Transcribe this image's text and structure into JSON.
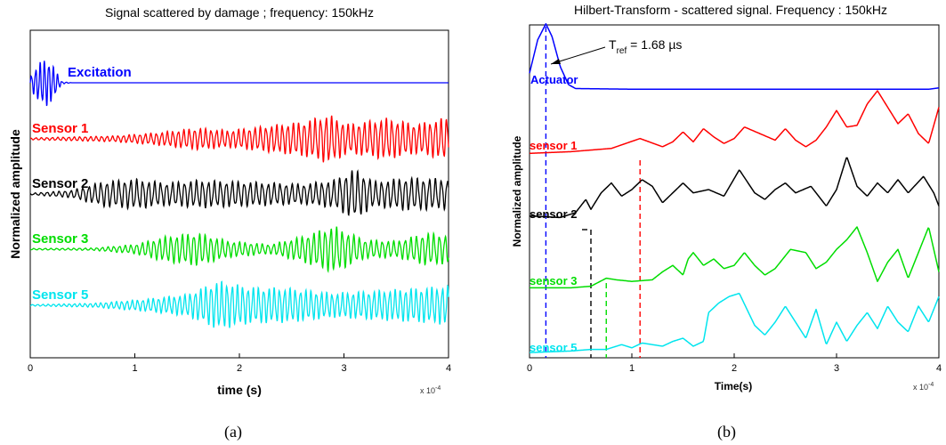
{
  "chart_data": [
    {
      "panel": "(a)",
      "type": "line",
      "title": "Signal scattered by damage ; frequency: 150kHz",
      "xlabel": "time (s)",
      "ylabel": "Normalized amplitude",
      "x_exponent_label": "x 10",
      "x_exponent_power": "-4",
      "xlim": [
        0,
        4
      ],
      "xticks": [
        "0",
        "1",
        "2",
        "3",
        "4"
      ],
      "grid": false,
      "series": [
        {
          "name": "Excitation",
          "color": "#0000ff",
          "envelope": [
            [
              0.0,
              0.25
            ],
            [
              0.08,
              0.8
            ],
            [
              0.15,
              1.0
            ],
            [
              0.22,
              0.7
            ],
            [
              0.3,
              0.05
            ],
            [
              0.4,
              0.0
            ],
            [
              4.0,
              0.0
            ]
          ]
        },
        {
          "name": "Sensor 1",
          "color": "#ff0000",
          "envelope": [
            [
              0.0,
              0.04
            ],
            [
              0.8,
              0.12
            ],
            [
              1.2,
              0.25
            ],
            [
              1.6,
              0.45
            ],
            [
              1.9,
              0.35
            ],
            [
              2.2,
              0.5
            ],
            [
              2.6,
              0.7
            ],
            [
              2.85,
              1.0
            ],
            [
              3.05,
              0.6
            ],
            [
              3.4,
              0.85
            ],
            [
              3.7,
              0.6
            ],
            [
              4.0,
              0.9
            ]
          ]
        },
        {
          "name": "Sensor 2",
          "color": "#000000",
          "envelope": [
            [
              0.0,
              0.03
            ],
            [
              0.4,
              0.15
            ],
            [
              0.7,
              0.5
            ],
            [
              1.0,
              0.6
            ],
            [
              1.3,
              0.45
            ],
            [
              1.6,
              0.55
            ],
            [
              2.0,
              0.5
            ],
            [
              2.3,
              0.45
            ],
            [
              2.6,
              0.4
            ],
            [
              2.9,
              0.55
            ],
            [
              3.1,
              1.0
            ],
            [
              3.3,
              0.5
            ],
            [
              3.6,
              0.65
            ],
            [
              4.0,
              0.6
            ]
          ]
        },
        {
          "name": "Sensor 3",
          "color": "#00dd00",
          "envelope": [
            [
              0.0,
              0.03
            ],
            [
              0.6,
              0.05
            ],
            [
              1.0,
              0.2
            ],
            [
              1.3,
              0.55
            ],
            [
              1.6,
              0.7
            ],
            [
              1.9,
              0.35
            ],
            [
              2.3,
              0.2
            ],
            [
              2.6,
              0.55
            ],
            [
              2.9,
              1.0
            ],
            [
              3.2,
              0.4
            ],
            [
              3.5,
              0.35
            ],
            [
              3.8,
              0.7
            ],
            [
              4.0,
              0.6
            ]
          ]
        },
        {
          "name": "Sensor 5",
          "color": "#00e5ee",
          "envelope": [
            [
              0.0,
              0.03
            ],
            [
              0.6,
              0.08
            ],
            [
              1.1,
              0.25
            ],
            [
              1.5,
              0.45
            ],
            [
              1.8,
              1.0
            ],
            [
              2.1,
              0.75
            ],
            [
              2.5,
              0.7
            ],
            [
              2.9,
              0.5
            ],
            [
              3.3,
              0.6
            ],
            [
              3.7,
              0.7
            ],
            [
              4.0,
              0.8
            ]
          ]
        }
      ]
    },
    {
      "panel": "(b)",
      "type": "line",
      "title": "Hilbert-Transform - scattered signal. Frequency : 150kHz",
      "xlabel": "Time(s)",
      "ylabel": "Normalized amplitude",
      "x_exponent_label": "x 10",
      "x_exponent_power": "-4",
      "xlim": [
        0,
        4
      ],
      "xticks": [
        "0",
        "1",
        "2",
        "3",
        "4"
      ],
      "grid": false,
      "annotation": {
        "text_prefix": "T",
        "text_sub": "ref",
        "text_suffix": " = 1.68 µs"
      },
      "series": [
        {
          "name": "Actuator",
          "color": "#0000ff",
          "points": [
            [
              0.0,
              0.25
            ],
            [
              0.08,
              0.75
            ],
            [
              0.16,
              0.99
            ],
            [
              0.22,
              0.8
            ],
            [
              0.3,
              0.35
            ],
            [
              0.38,
              0.08
            ],
            [
              0.45,
              0.02
            ],
            [
              1.0,
              0.01
            ],
            [
              2.0,
              0.01
            ],
            [
              3.0,
              0.01
            ],
            [
              3.9,
              0.01
            ],
            [
              4.0,
              0.03
            ]
          ]
        },
        {
          "name": "sensor 1",
          "color": "#ff0000",
          "points": [
            [
              0.0,
              0.1
            ],
            [
              0.4,
              0.15
            ],
            [
              0.8,
              0.25
            ],
            [
              1.08,
              0.55
            ],
            [
              1.3,
              0.3
            ],
            [
              1.4,
              0.45
            ],
            [
              1.5,
              0.75
            ],
            [
              1.6,
              0.45
            ],
            [
              1.7,
              0.85
            ],
            [
              1.8,
              0.6
            ],
            [
              1.9,
              0.4
            ],
            [
              2.0,
              0.55
            ],
            [
              2.1,
              0.9
            ],
            [
              2.25,
              0.7
            ],
            [
              2.4,
              0.5
            ],
            [
              2.5,
              0.85
            ],
            [
              2.6,
              0.5
            ],
            [
              2.7,
              0.3
            ],
            [
              2.8,
              0.5
            ],
            [
              2.9,
              0.9
            ],
            [
              3.0,
              1.4
            ],
            [
              3.1,
              0.9
            ],
            [
              3.2,
              0.95
            ],
            [
              3.3,
              1.6
            ],
            [
              3.4,
              2.0
            ],
            [
              3.5,
              1.5
            ],
            [
              3.6,
              1.0
            ],
            [
              3.7,
              1.3
            ],
            [
              3.8,
              0.7
            ],
            [
              3.9,
              0.4
            ],
            [
              4.0,
              1.5
            ]
          ]
        },
        {
          "name": "sensor 2",
          "color": "#000000",
          "points": [
            [
              0.0,
              0.2
            ],
            [
              0.3,
              0.15
            ],
            [
              0.45,
              0.3
            ],
            [
              0.55,
              0.7
            ],
            [
              0.6,
              0.4
            ],
            [
              0.7,
              0.9
            ],
            [
              0.8,
              1.2
            ],
            [
              0.9,
              0.8
            ],
            [
              1.0,
              1.0
            ],
            [
              1.1,
              1.3
            ],
            [
              1.2,
              1.1
            ],
            [
              1.3,
              0.6
            ],
            [
              1.4,
              0.9
            ],
            [
              1.5,
              1.2
            ],
            [
              1.6,
              0.9
            ],
            [
              1.75,
              1.0
            ],
            [
              1.9,
              0.8
            ],
            [
              2.05,
              1.6
            ],
            [
              2.2,
              0.9
            ],
            [
              2.3,
              0.7
            ],
            [
              2.4,
              1.0
            ],
            [
              2.5,
              1.2
            ],
            [
              2.6,
              0.9
            ],
            [
              2.75,
              1.1
            ],
            [
              2.9,
              0.5
            ],
            [
              3.0,
              1.0
            ],
            [
              3.1,
              2.0
            ],
            [
              3.2,
              1.1
            ],
            [
              3.3,
              0.8
            ],
            [
              3.4,
              1.2
            ],
            [
              3.5,
              0.9
            ],
            [
              3.6,
              1.3
            ],
            [
              3.7,
              0.9
            ],
            [
              3.85,
              1.4
            ],
            [
              3.95,
              0.9
            ],
            [
              4.0,
              0.5
            ]
          ]
        },
        {
          "name": "sensor 3",
          "color": "#00dd00",
          "points": [
            [
              0.0,
              0.1
            ],
            [
              0.4,
              0.1
            ],
            [
              0.6,
              0.15
            ],
            [
              0.75,
              0.4
            ],
            [
              0.85,
              0.35
            ],
            [
              1.0,
              0.3
            ],
            [
              1.2,
              0.35
            ],
            [
              1.3,
              0.6
            ],
            [
              1.4,
              0.8
            ],
            [
              1.5,
              0.5
            ],
            [
              1.55,
              1.0
            ],
            [
              1.6,
              1.2
            ],
            [
              1.7,
              0.8
            ],
            [
              1.8,
              1.0
            ],
            [
              1.9,
              0.7
            ],
            [
              2.0,
              0.8
            ],
            [
              2.1,
              1.2
            ],
            [
              2.2,
              0.8
            ],
            [
              2.3,
              0.5
            ],
            [
              2.4,
              0.7
            ],
            [
              2.55,
              1.3
            ],
            [
              2.7,
              1.2
            ],
            [
              2.8,
              0.7
            ],
            [
              2.9,
              0.9
            ],
            [
              3.0,
              1.3
            ],
            [
              3.1,
              1.6
            ],
            [
              3.2,
              2.0
            ],
            [
              3.3,
              1.2
            ],
            [
              3.4,
              0.3
            ],
            [
              3.5,
              0.9
            ],
            [
              3.6,
              1.3
            ],
            [
              3.7,
              0.4
            ],
            [
              3.8,
              1.2
            ],
            [
              3.9,
              2.0
            ],
            [
              4.0,
              0.6
            ]
          ]
        },
        {
          "name": "sensor 5",
          "color": "#00e5ee",
          "points": [
            [
              0.0,
              0.05
            ],
            [
              0.4,
              0.1
            ],
            [
              0.6,
              0.15
            ],
            [
              0.75,
              0.15
            ],
            [
              0.9,
              0.3
            ],
            [
              1.0,
              0.2
            ],
            [
              1.1,
              0.35
            ],
            [
              1.2,
              0.3
            ],
            [
              1.3,
              0.25
            ],
            [
              1.4,
              0.4
            ],
            [
              1.5,
              0.5
            ],
            [
              1.6,
              0.25
            ],
            [
              1.7,
              0.4
            ],
            [
              1.75,
              1.3
            ],
            [
              1.85,
              1.6
            ],
            [
              1.95,
              1.8
            ],
            [
              2.05,
              1.9
            ],
            [
              2.2,
              0.9
            ],
            [
              2.3,
              0.6
            ],
            [
              2.4,
              1.0
            ],
            [
              2.5,
              1.5
            ],
            [
              2.6,
              1.0
            ],
            [
              2.7,
              0.5
            ],
            [
              2.8,
              1.4
            ],
            [
              2.9,
              0.3
            ],
            [
              3.0,
              1.0
            ],
            [
              3.1,
              0.4
            ],
            [
              3.2,
              0.9
            ],
            [
              3.3,
              1.3
            ],
            [
              3.4,
              0.8
            ],
            [
              3.5,
              1.5
            ],
            [
              3.6,
              1.0
            ],
            [
              3.7,
              0.7
            ],
            [
              3.8,
              1.5
            ],
            [
              3.9,
              1.0
            ],
            [
              4.0,
              1.8
            ]
          ]
        }
      ],
      "markers": [
        {
          "color": "#0000ff",
          "x": 0.16
        },
        {
          "color": "#000000",
          "x": 0.6
        },
        {
          "color": "#00dd00",
          "x": 0.75
        },
        {
          "color": "#ff0000",
          "x": 1.08
        }
      ]
    }
  ],
  "captions": {
    "a": "(a)",
    "b": "(b)"
  }
}
